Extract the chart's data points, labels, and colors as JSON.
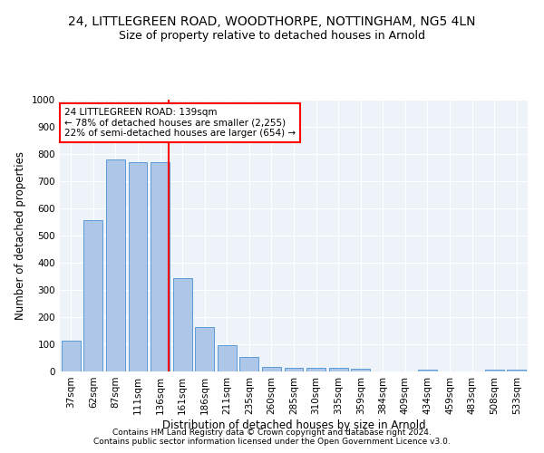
{
  "title1": "24, LITTLEGREEN ROAD, WOODTHORPE, NOTTINGHAM, NG5 4LN",
  "title2": "Size of property relative to detached houses in Arnold",
  "xlabel": "Distribution of detached houses by size in Arnold",
  "ylabel": "Number of detached properties",
  "categories": [
    "37sqm",
    "62sqm",
    "87sqm",
    "111sqm",
    "136sqm",
    "161sqm",
    "186sqm",
    "211sqm",
    "235sqm",
    "260sqm",
    "285sqm",
    "310sqm",
    "335sqm",
    "359sqm",
    "384sqm",
    "409sqm",
    "434sqm",
    "459sqm",
    "483sqm",
    "508sqm",
    "533sqm"
  ],
  "values": [
    113,
    557,
    780,
    770,
    770,
    343,
    165,
    97,
    52,
    18,
    13,
    13,
    13,
    10,
    0,
    0,
    8,
    0,
    0,
    8,
    8
  ],
  "bar_color": "#aec6e8",
  "bar_edge_color": "#5b9bd5",
  "vline_color": "red",
  "vline_pos": 4.4,
  "annotation_text": "24 LITTLEGREEN ROAD: 139sqm\n← 78% of detached houses are smaller (2,255)\n22% of semi-detached houses are larger (654) →",
  "annotation_box_color": "white",
  "annotation_box_edge": "red",
  "ylim": [
    0,
    1000
  ],
  "yticks": [
    0,
    100,
    200,
    300,
    400,
    500,
    600,
    700,
    800,
    900,
    1000
  ],
  "footer1": "Contains HM Land Registry data © Crown copyright and database right 2024.",
  "footer2": "Contains public sector information licensed under the Open Government Licence v3.0.",
  "bg_color": "#eef2f9",
  "title1_fontsize": 10,
  "title2_fontsize": 9,
  "xlabel_fontsize": 8.5,
  "ylabel_fontsize": 8.5,
  "tick_fontsize": 7.5,
  "footer_fontsize": 6.5,
  "annotation_fontsize": 7.5
}
